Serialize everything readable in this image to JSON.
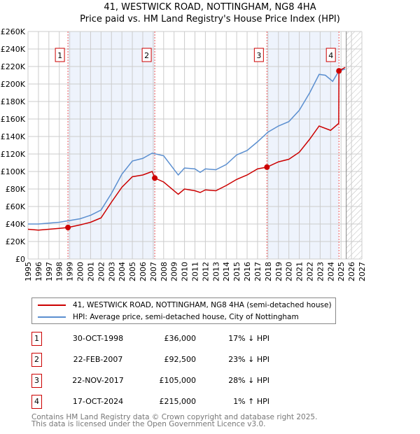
{
  "chart_data": {
    "type": "line",
    "title": "41, WESTWICK ROAD, NOTTINGHAM, NG8 4HA",
    "subtitle": "Price paid vs. HM Land Registry's House Price Index (HPI)",
    "xlim": [
      1995,
      2027
    ],
    "ylim": [
      0,
      260000
    ],
    "x_ticks": [
      "1995",
      "1996",
      "1997",
      "1998",
      "1999",
      "2000",
      "2001",
      "2002",
      "2003",
      "2004",
      "2005",
      "2006",
      "2007",
      "2008",
      "2009",
      "2010",
      "2011",
      "2012",
      "2013",
      "2014",
      "2015",
      "2016",
      "2017",
      "2018",
      "2019",
      "2020",
      "2021",
      "2022",
      "2023",
      "2024",
      "2025",
      "2026",
      "2027"
    ],
    "y_ticks": [
      {
        "v": 0,
        "l": "£0"
      },
      {
        "v": 20000,
        "l": "£20K"
      },
      {
        "v": 40000,
        "l": "£40K"
      },
      {
        "v": 60000,
        "l": "£60K"
      },
      {
        "v": 80000,
        "l": "£80K"
      },
      {
        "v": 100000,
        "l": "£100K"
      },
      {
        "v": 120000,
        "l": "£120K"
      },
      {
        "v": 140000,
        "l": "£140K"
      },
      {
        "v": 160000,
        "l": "£160K"
      },
      {
        "v": 180000,
        "l": "£180K"
      },
      {
        "v": 200000,
        "l": "£200K"
      },
      {
        "v": 220000,
        "l": "£220K"
      },
      {
        "v": 240000,
        "l": "£240K"
      },
      {
        "v": 260000,
        "l": "£260K"
      }
    ],
    "grid": true,
    "series": [
      {
        "name": "41, WESTWICK ROAD, NOTTINGHAM, NG8 4HA (semi-detached house)",
        "color": "#cc0000",
        "x": [
          1995,
          1996,
          1997,
          1998,
          1998.83,
          2000,
          2001,
          2002,
          2003,
          2004,
          2005,
          2006,
          2006.9,
          2007.15,
          2008,
          2009.4,
          2010,
          2011,
          2011.5,
          2012,
          2013,
          2014,
          2015,
          2016,
          2017,
          2017.9,
          2019,
          2020,
          2021,
          2022,
          2022.9,
          2024,
          2024.78,
          2024.8,
          2025.4
        ],
        "y": [
          34000,
          33000,
          34000,
          35000,
          36000,
          39000,
          42000,
          47000,
          65000,
          82000,
          94000,
          96000,
          100000,
          92500,
          88000,
          74000,
          80000,
          78000,
          76000,
          79000,
          78000,
          84000,
          91000,
          96000,
          103000,
          105000,
          111000,
          114000,
          122000,
          137000,
          152000,
          147000,
          155000,
          215000,
          219000
        ]
      },
      {
        "name": "HPI: Average price, semi-detached house, City of Nottingham",
        "color": "#5b8fd0",
        "x": [
          1995,
          1996,
          1997,
          1998,
          1999,
          2000,
          2001,
          2002,
          2003,
          2004,
          2005,
          2006,
          2006.9,
          2008,
          2009.4,
          2010,
          2011,
          2011.5,
          2012,
          2013,
          2014,
          2015,
          2016,
          2017,
          2018,
          2019,
          2020,
          2021,
          2022,
          2022.9,
          2023.5,
          2024.2,
          2024.8,
          2025.4
        ],
        "y": [
          40000,
          40000,
          41000,
          42000,
          44000,
          46000,
          50000,
          56000,
          75000,
          97000,
          112000,
          115000,
          121000,
          118000,
          96000,
          104000,
          103000,
          99000,
          103000,
          102000,
          108000,
          119000,
          124000,
          134000,
          145000,
          152000,
          157000,
          170000,
          190000,
          211000,
          210000,
          203000,
          215000,
          217000
        ]
      }
    ],
    "annotations": [
      {
        "id": "1",
        "x": 1998.83,
        "y": 36000
      },
      {
        "id": "2",
        "x": 2007.15,
        "y": 92500
      },
      {
        "id": "3",
        "x": 2017.9,
        "y": 105000
      },
      {
        "id": "4",
        "x": 2024.8,
        "y": 215000
      }
    ],
    "shaded_ranges": [
      [
        1998.83,
        2007.15
      ],
      [
        2017.9,
        2024.8
      ]
    ],
    "forecast_from": 2025.5
  },
  "legend": {
    "property": "41, WESTWICK ROAD, NOTTINGHAM, NG8 4HA (semi-detached house)",
    "hpi": "HPI: Average price, semi-detached house, City of Nottingham"
  },
  "transactions": [
    {
      "num": "1",
      "date": "30-OCT-1998",
      "price": "£36,000",
      "hpi": "17% ↓ HPI"
    },
    {
      "num": "2",
      "date": "22-FEB-2007",
      "price": "£92,500",
      "hpi": "23% ↓ HPI"
    },
    {
      "num": "3",
      "date": "22-NOV-2017",
      "price": "£105,000",
      "hpi": "28% ↓ HPI"
    },
    {
      "num": "4",
      "date": "17-OCT-2024",
      "price": "£215,000",
      "hpi": "1% ↑ HPI"
    }
  ],
  "footer": {
    "line1": "Contains HM Land Registry data © Crown copyright and database right 2025.",
    "line2": "This data is licensed under the Open Government Licence v3.0."
  }
}
